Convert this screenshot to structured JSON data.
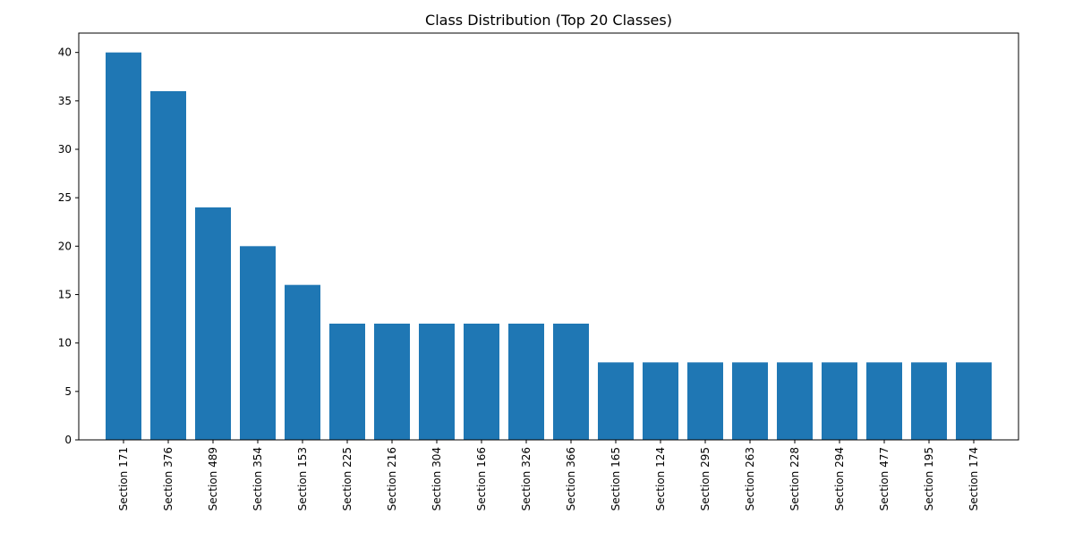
{
  "chart_data": {
    "type": "bar",
    "title": "Class Distribution (Top 20 Classes)",
    "xlabel": "",
    "ylabel": "",
    "categories": [
      "Section 171",
      "Section 376",
      "Section 489",
      "Section 354",
      "Section 153",
      "Section 225",
      "Section 216",
      "Section 304",
      "Section 166",
      "Section 326",
      "Section 366",
      "Section 165",
      "Section 124",
      "Section 295",
      "Section 263",
      "Section 228",
      "Section 294",
      "Section 477",
      "Section 195",
      "Section 174"
    ],
    "values": [
      40,
      36,
      24,
      20,
      16,
      12,
      12,
      12,
      12,
      12,
      12,
      8,
      8,
      8,
      8,
      8,
      8,
      8,
      8,
      8
    ],
    "ylim": [
      0,
      42
    ],
    "yticks": [
      0,
      5,
      10,
      15,
      20,
      25,
      30,
      35,
      40
    ],
    "grid": false,
    "legend": "none",
    "colors": {
      "bar": "#1f77b4",
      "axis": "#000000",
      "background": "#ffffff"
    }
  }
}
